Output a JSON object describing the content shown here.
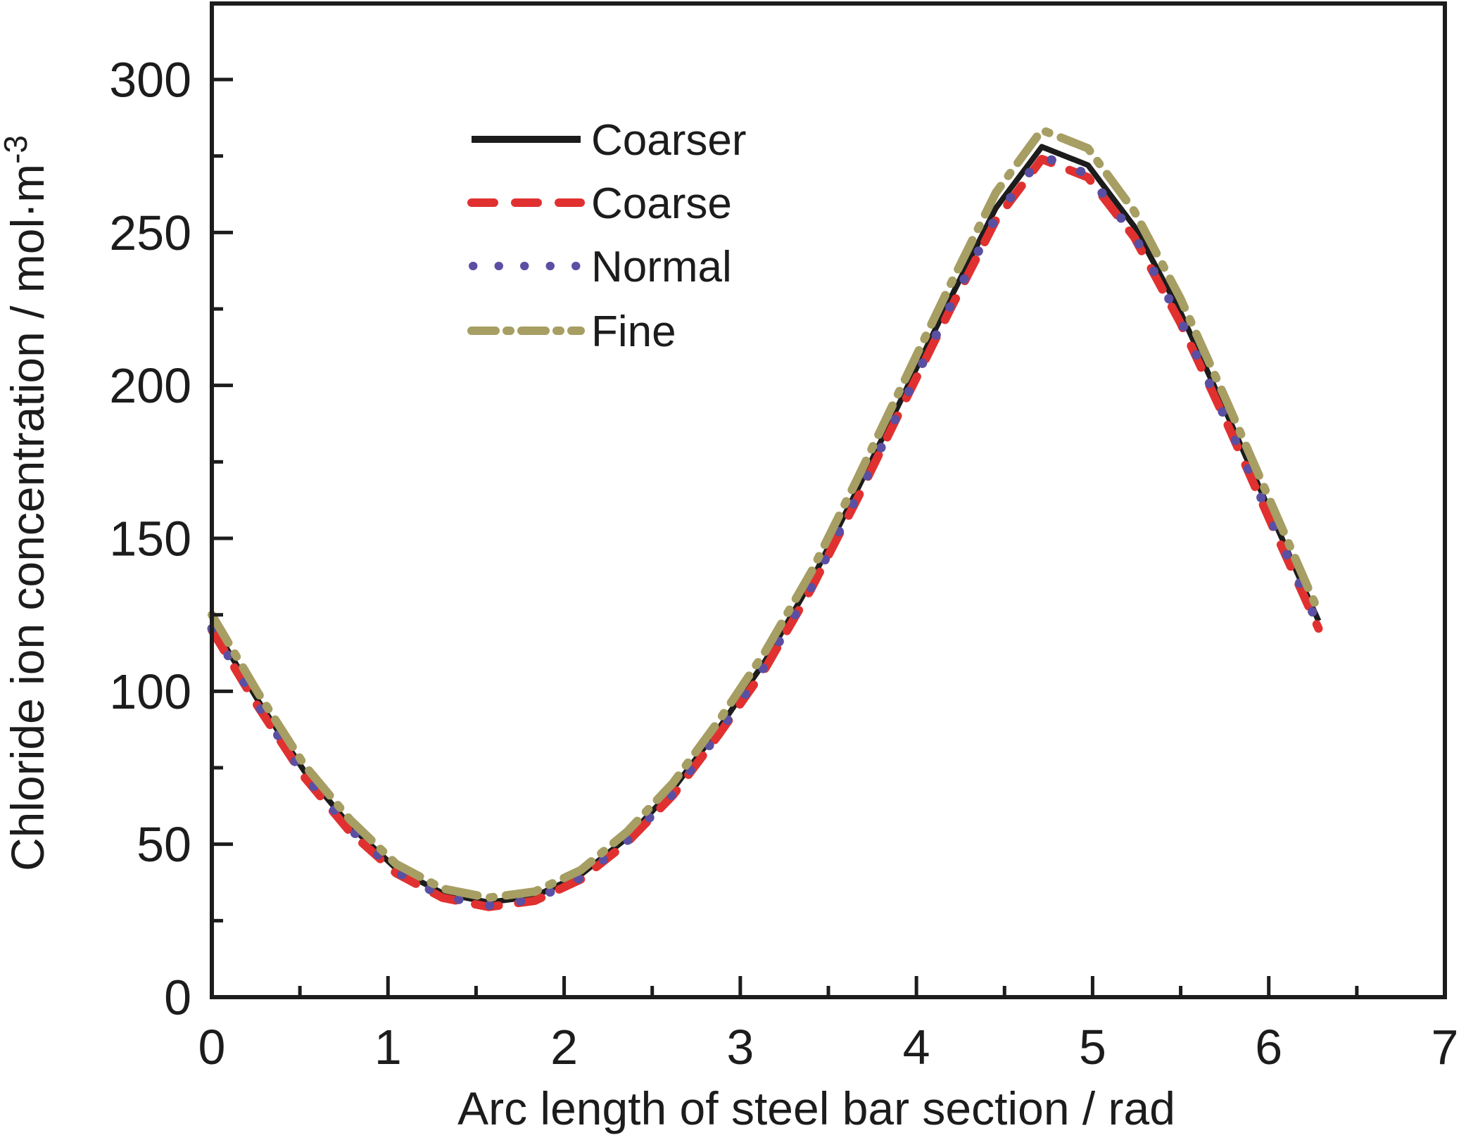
{
  "figure": {
    "background": "#ffffff",
    "border_color": "#1c1c1c"
  },
  "chart_data": {
    "type": "line",
    "title": "",
    "xlabel": "Arc length of steel bar section / rad",
    "ylabel": "Chloride ion concentration / mol·m",
    "ylabel_superscript": "-3",
    "xlim": [
      0,
      7
    ],
    "ylim": [
      0,
      300
    ],
    "x_major_ticks": [
      0,
      1,
      2,
      3,
      4,
      5,
      6,
      7
    ],
    "x_minor_ticks": [
      0.5,
      1.5,
      2.5,
      3.5,
      4.5,
      5.5,
      6.5
    ],
    "y_major_ticks": [
      0,
      50,
      100,
      150,
      200,
      250,
      300
    ],
    "y_minor_ticks": [
      25,
      75,
      125,
      175,
      225,
      275
    ],
    "grid": false,
    "legend_position": "upper-left-inside",
    "x": [
      0.0,
      0.262,
      0.524,
      0.785,
      1.047,
      1.309,
      1.571,
      1.833,
      2.094,
      2.356,
      2.618,
      2.88,
      3.142,
      3.403,
      3.665,
      3.927,
      4.189,
      4.451,
      4.712,
      4.974,
      5.236,
      5.498,
      5.76,
      6.021,
      6.283
    ],
    "series": [
      {
        "name": "Coarser",
        "color": "#1c1c1c",
        "style": "solid",
        "values": [
          122,
          97,
          74,
          56,
          42,
          34,
          31,
          33,
          40,
          52,
          68,
          88,
          110,
          136,
          166,
          197,
          228,
          258,
          278,
          272,
          252,
          224,
          191,
          157,
          123
        ]
      },
      {
        "name": "Coarse",
        "color": "#e03130",
        "style": "dashed",
        "values": [
          120,
          95,
          72,
          54,
          40.5,
          32.5,
          29.5,
          31.5,
          38.5,
          50.5,
          66,
          86,
          107.5,
          133.5,
          163,
          194,
          224.5,
          254,
          274,
          268,
          248.5,
          220.5,
          188,
          154,
          120.5
        ]
      },
      {
        "name": "Normal",
        "color": "#5a4fa2",
        "style": "dotted",
        "values": [
          120.5,
          95.5,
          72.5,
          55,
          41,
          33,
          30,
          32,
          39,
          51,
          66.5,
          86.5,
          108.5,
          134,
          164,
          194.5,
          225.5,
          255,
          275,
          269,
          249,
          221.5,
          188.5,
          155,
          121.5
        ]
      },
      {
        "name": "Fine",
        "color": "#a69e63",
        "style": "dash-dot-dot",
        "values": [
          125,
          99.5,
          76,
          58,
          43.5,
          35.5,
          32.5,
          34.5,
          41.5,
          54,
          70,
          90.5,
          113,
          139,
          169.5,
          201,
          232.5,
          263,
          283.5,
          277.5,
          257,
          228.5,
          195,
          160.5,
          126
        ]
      }
    ]
  }
}
